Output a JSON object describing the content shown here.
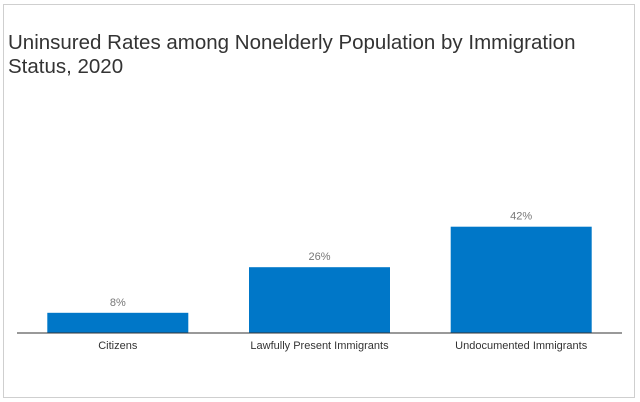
{
  "chart_data": {
    "type": "bar",
    "title": "Uninsured Rates among Nonelderly Population by Immigration Status, 2020",
    "categories": [
      "Citizens",
      "Lawfully Present Immigrants",
      "Undocumented Immigrants"
    ],
    "values": [
      8,
      26,
      42
    ],
    "data_labels": [
      "8%",
      "26%",
      "42%"
    ],
    "ylim": [
      0,
      100
    ],
    "xlabel": "",
    "ylabel": "",
    "grid": false,
    "colors": {
      "bar": "#0077C8",
      "axis": "#333333",
      "data_label": "#777777",
      "tick_label": "#333333"
    }
  }
}
